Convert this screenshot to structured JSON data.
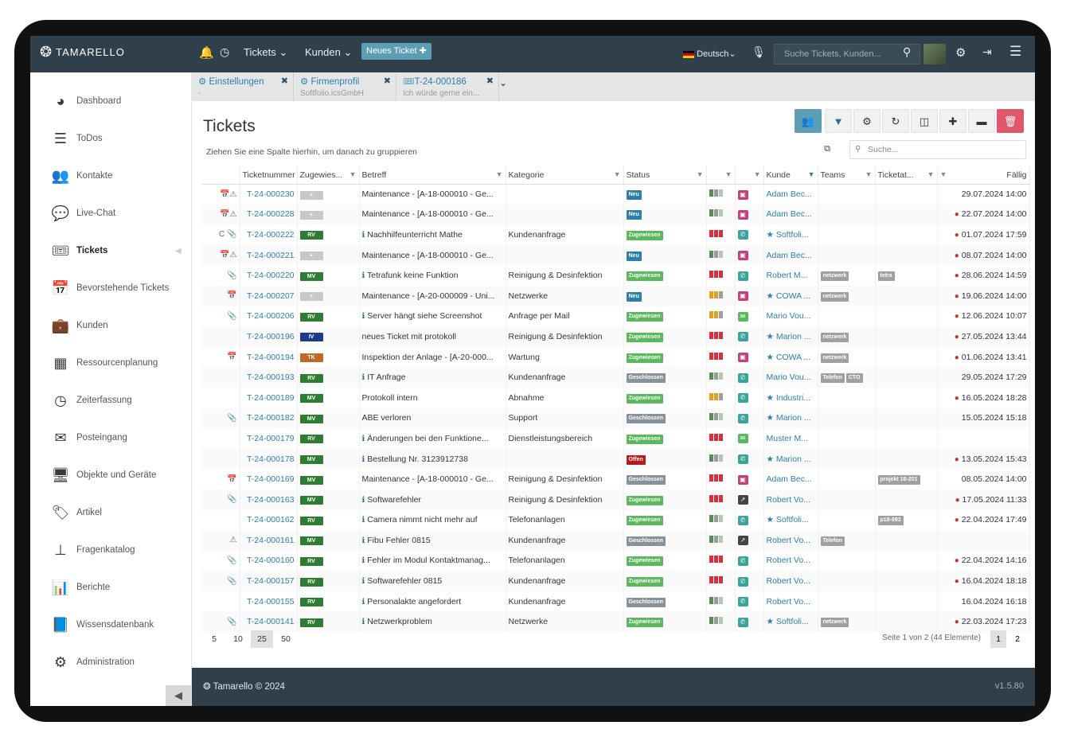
{
  "header": {
    "brand": "TAMARELLO",
    "nav_tickets": "Tickets",
    "nav_kunden": "Kunden",
    "new_ticket": "Neues Ticket",
    "language": "Deutsch",
    "search_placeholder": "Suche Tickets, Kunden..."
  },
  "sidebar": {
    "items": [
      {
        "label": "Dashboard",
        "icon": "dashboard-icon"
      },
      {
        "label": "ToDos",
        "icon": "todo-icon"
      },
      {
        "label": "Kontakte",
        "icon": "contacts-icon"
      },
      {
        "label": "Live-Chat",
        "icon": "chat-icon"
      },
      {
        "label": "Tickets",
        "icon": "ticket-icon"
      },
      {
        "label": "Bevorstehende Tickets",
        "icon": "calendar-icon"
      },
      {
        "label": "Kunden",
        "icon": "briefcase-icon"
      },
      {
        "label": "Ressourcenplanung",
        "icon": "calendar-grid-icon"
      },
      {
        "label": "Zeiterfassung",
        "icon": "clock-icon"
      },
      {
        "label": "Posteingang",
        "icon": "mail-icon"
      },
      {
        "label": "Objekte und Geräte",
        "icon": "monitor-icon"
      },
      {
        "label": "Artikel",
        "icon": "tags-icon"
      },
      {
        "label": "Fragenkatalog",
        "icon": "sitemap-icon"
      },
      {
        "label": "Berichte",
        "icon": "bar-chart-icon"
      },
      {
        "label": "Wissensdatenbank",
        "icon": "book-icon"
      },
      {
        "label": "Administration",
        "icon": "gear-icon"
      }
    ]
  },
  "tabs": [
    {
      "title": "Einstellungen",
      "subtitle": "-"
    },
    {
      "title": "Firmenprofil",
      "subtitle": "Softfolio.icsGmbH"
    },
    {
      "title": "T-24-000186",
      "subtitle": "Ich würde gerne ein..."
    }
  ],
  "page": {
    "title": "Tickets",
    "group_hint": "Ziehen Sie eine Spalte hierhin, um danach zu gruppieren",
    "search_placeholder": "Suche..."
  },
  "columns": [
    "Ticketnummer",
    "Zugewies...",
    "Betreff",
    "Kategorie",
    "Status",
    "",
    "",
    "Kunde",
    "Teams",
    "Ticketat...",
    "Fällig"
  ],
  "colors": {
    "RV": "#2e7d32",
    "MV": "#2e7d32",
    "IV": "#1e3a8a",
    "TK": "#c2672a",
    "Neu": "#2d7fa8",
    "Zugewiesen": "#5cb85c",
    "Geschlossen": "#8a9299",
    "Offen": "#b71c1c"
  },
  "rows": [
    {
      "pre": "📅⚠",
      "num": "T-24-000230",
      "user": "+",
      "subject": "Maintenance - [A-18-000010 - Ge...",
      "info": false,
      "cat": "",
      "status": "Neu",
      "prio": "gray",
      "type": "pink",
      "kunde": "Adam Bec...",
      "star": false,
      "teams": [],
      "attr": [],
      "due": "29.07.2024 14:00",
      "overdue": false
    },
    {
      "pre": "📅⚠",
      "num": "T-24-000228",
      "user": "+",
      "subject": "Maintenance - [A-18-000010 - Ge...",
      "info": false,
      "cat": "",
      "status": "Neu",
      "prio": "gray",
      "type": "pink",
      "kunde": "Adam Bec...",
      "star": false,
      "teams": [],
      "attr": [],
      "due": "22.07.2024 14:00",
      "overdue": true
    },
    {
      "pre": "C 📎",
      "num": "T-24-000222",
      "user": "RV",
      "subject": "Nachhilfeunterricht Mathe",
      "info": true,
      "cat": "Kundenanfrage",
      "status": "Zugewiesen",
      "prio": "red",
      "type": "teal",
      "kunde": "Softfoli...",
      "star": true,
      "teams": [],
      "attr": [],
      "due": "01.07.2024 17:59",
      "overdue": true
    },
    {
      "pre": "📅⚠",
      "num": "T-24-000221",
      "user": "+",
      "subject": "Maintenance - [A-18-000010 - Ge...",
      "info": false,
      "cat": "",
      "status": "Neu",
      "prio": "gray",
      "type": "pink",
      "kunde": "Adam Bec...",
      "star": false,
      "teams": [],
      "attr": [],
      "due": "08.07.2024 14:00",
      "overdue": true
    },
    {
      "pre": "📎",
      "num": "T-24-000220",
      "user": "MV",
      "subject": "Tetrafunk keine Funktion",
      "info": true,
      "cat": "Reinigung & Desinfektion",
      "status": "Zugewiesen",
      "prio": "red",
      "type": "teal",
      "kunde": "Robert M...",
      "star": false,
      "teams": [
        "netzwerk"
      ],
      "attr": [
        "tetra"
      ],
      "due": "28.06.2024 14:59",
      "overdue": true
    },
    {
      "pre": "📅",
      "num": "T-24-000207",
      "user": "+",
      "subject": "Maintenance - [A-20-000009 - Uni...",
      "info": false,
      "cat": "Netzwerke",
      "status": "Neu",
      "prio": "orange",
      "type": "pink",
      "kunde": "COWA ...",
      "star": true,
      "teams": [
        "netzwerk"
      ],
      "attr": [],
      "due": "19.06.2024 14:00",
      "overdue": true
    },
    {
      "pre": "📎",
      "num": "T-24-000206",
      "user": "RV",
      "subject": "Server hängt siehe Screenshot",
      "info": true,
      "cat": "Anfrage per Mail",
      "status": "Zugewiesen",
      "prio": "orange",
      "type": "green",
      "kunde": "Mario Vou...",
      "star": false,
      "teams": [],
      "attr": [],
      "due": "12.06.2024 10:07",
      "overdue": true
    },
    {
      "pre": "",
      "num": "T-24-000196",
      "user": "IV",
      "subject": "neues Ticket mit protokoll",
      "info": false,
      "cat": "Reinigung & Desinfektion",
      "status": "Zugewiesen",
      "prio": "red",
      "type": "teal",
      "kunde": "Marion ...",
      "star": true,
      "teams": [
        "netzwerk"
      ],
      "attr": [],
      "due": "27.05.2024 13:44",
      "overdue": true
    },
    {
      "pre": "📅",
      "num": "T-24-000194",
      "user": "TK",
      "subject": "Inspektion der Anlage - [A-20-000...",
      "info": false,
      "cat": "Wartung",
      "status": "Zugewiesen",
      "prio": "red",
      "type": "pink",
      "kunde": "COWA ...",
      "star": true,
      "teams": [
        "netzwerk"
      ],
      "attr": [],
      "due": "01.06.2024 13:41",
      "overdue": true
    },
    {
      "pre": "",
      "num": "T-24-000193",
      "user": "RV",
      "subject": "IT Anfrage",
      "info": true,
      "cat": "Kundenanfrage",
      "status": "Geschlossen",
      "prio": "gray",
      "type": "teal",
      "kunde": "Mario Vou...",
      "star": false,
      "teams": [
        "Telefon",
        "CTO"
      ],
      "attr": [],
      "due": "29.05.2024 17:29",
      "overdue": false
    },
    {
      "pre": "",
      "num": "T-24-000189",
      "user": "MV",
      "subject": "Protokoll intern",
      "info": false,
      "cat": "Abnahme",
      "status": "Zugewiesen",
      "prio": "orange",
      "type": "teal",
      "kunde": "Industri...",
      "star": true,
      "teams": [],
      "attr": [],
      "due": "16.05.2024 18:28",
      "overdue": true
    },
    {
      "pre": "📎",
      "num": "T-24-000182",
      "user": "MV",
      "subject": "ABE verloren",
      "info": false,
      "cat": "Support",
      "status": "Geschlossen",
      "prio": "gray",
      "type": "teal",
      "kunde": "Marion ...",
      "star": true,
      "teams": [],
      "attr": [],
      "due": "15.05.2024 15:18",
      "overdue": false
    },
    {
      "pre": "",
      "num": "T-24-000179",
      "user": "RV",
      "subject": "Änderungen bei den Funktione...",
      "info": true,
      "cat": "Dienstleistungsbereich",
      "status": "Zugewiesen",
      "prio": "red",
      "type": "green",
      "kunde": "Muster M...",
      "star": false,
      "teams": [],
      "attr": [],
      "due": "",
      "overdue": false
    },
    {
      "pre": "",
      "num": "T-24-000178",
      "user": "MV",
      "subject": "Bestellung Nr. 3123912738",
      "info": true,
      "cat": "",
      "status": "Offen",
      "prio": "gray",
      "type": "teal",
      "kunde": "Marion ...",
      "star": true,
      "teams": [],
      "attr": [],
      "due": "13.05.2024 15:43",
      "overdue": true
    },
    {
      "pre": "📅",
      "num": "T-24-000169",
      "user": "MV",
      "subject": "Maintenance - [A-18-000010 - Ge...",
      "info": false,
      "cat": "Reinigung & Desinfektion",
      "status": "Geschlossen",
      "prio": "red",
      "type": "pink",
      "kunde": "Adam Bec...",
      "star": false,
      "teams": [],
      "attr": [
        "projekt 18-201"
      ],
      "due": "08.05.2024 14:00",
      "overdue": false
    },
    {
      "pre": "📎",
      "num": "T-24-000163",
      "user": "MV",
      "subject": "Softwarefehler",
      "info": true,
      "cat": "Reinigung & Desinfektion",
      "status": "Zugewiesen",
      "prio": "red",
      "type": "dark",
      "kunde": "Robert Vo...",
      "star": false,
      "teams": [],
      "attr": [],
      "due": "17.05.2024 11:33",
      "overdue": true
    },
    {
      "pre": "",
      "num": "T-24-000162",
      "user": "RV",
      "subject": "Camera nimmt nicht mehr auf",
      "info": true,
      "cat": "Telefonanlagen",
      "status": "Zugewiesen",
      "prio": "gray",
      "type": "teal",
      "kunde": "Softfoli...",
      "star": true,
      "teams": [],
      "attr": [
        "p18-093"
      ],
      "due": "22.04.2024 17:49",
      "overdue": true
    },
    {
      "pre": "⚠",
      "num": "T-24-000161",
      "user": "MV",
      "subject": "Fibu Fehler 0815",
      "info": true,
      "cat": "Kundenanfrage",
      "status": "Geschlossen",
      "prio": "gray",
      "type": "dark",
      "kunde": "Robert Vo...",
      "star": false,
      "teams": [
        "Telefon"
      ],
      "attr": [],
      "due": "",
      "overdue": false
    },
    {
      "pre": "📎",
      "num": "T-24-000160",
      "user": "RV",
      "subject": "Fehler im Modul Kontaktmanag...",
      "info": true,
      "cat": "Telefonanlagen",
      "status": "Zugewiesen",
      "prio": "red",
      "type": "teal",
      "kunde": "Robert Vo...",
      "star": false,
      "teams": [],
      "attr": [],
      "due": "22.04.2024 14:16",
      "overdue": true
    },
    {
      "pre": "📎",
      "num": "T-24-000157",
      "user": "RV",
      "subject": "Softwarefehler 0815",
      "info": true,
      "cat": "Kundenanfrage",
      "status": "Zugewiesen",
      "prio": "red",
      "type": "teal",
      "kunde": "Robert Vo...",
      "star": false,
      "teams": [],
      "attr": [],
      "due": "16.04.2024 18:18",
      "overdue": true
    },
    {
      "pre": "",
      "num": "T-24-000155",
      "user": "RV",
      "subject": "Personalakte angefordert",
      "info": true,
      "cat": "Kundenanfrage",
      "status": "Geschlossen",
      "prio": "gray",
      "type": "teal",
      "kunde": "Robert Vo...",
      "star": false,
      "teams": [],
      "attr": [],
      "due": "16.04.2024 16:18",
      "overdue": false
    },
    {
      "pre": "📎",
      "num": "T-24-000141",
      "user": "RV",
      "subject": "Netzwerkproblem",
      "info": true,
      "cat": "Netzwerke",
      "status": "Zugewiesen",
      "prio": "gray",
      "type": "teal",
      "kunde": "Softfoli...",
      "star": true,
      "teams": [
        "netzwerk"
      ],
      "attr": [],
      "due": "22.03.2024 17:23",
      "overdue": true
    }
  ],
  "pager": {
    "sizes": [
      "5",
      "10",
      "25",
      "50"
    ],
    "selected": "25",
    "info": "Seite 1 von 2 (44 Elemente)",
    "pages": [
      "1",
      "2"
    ]
  },
  "footer": {
    "left": "Tamarello © 2024",
    "right": "v1.5.80"
  }
}
